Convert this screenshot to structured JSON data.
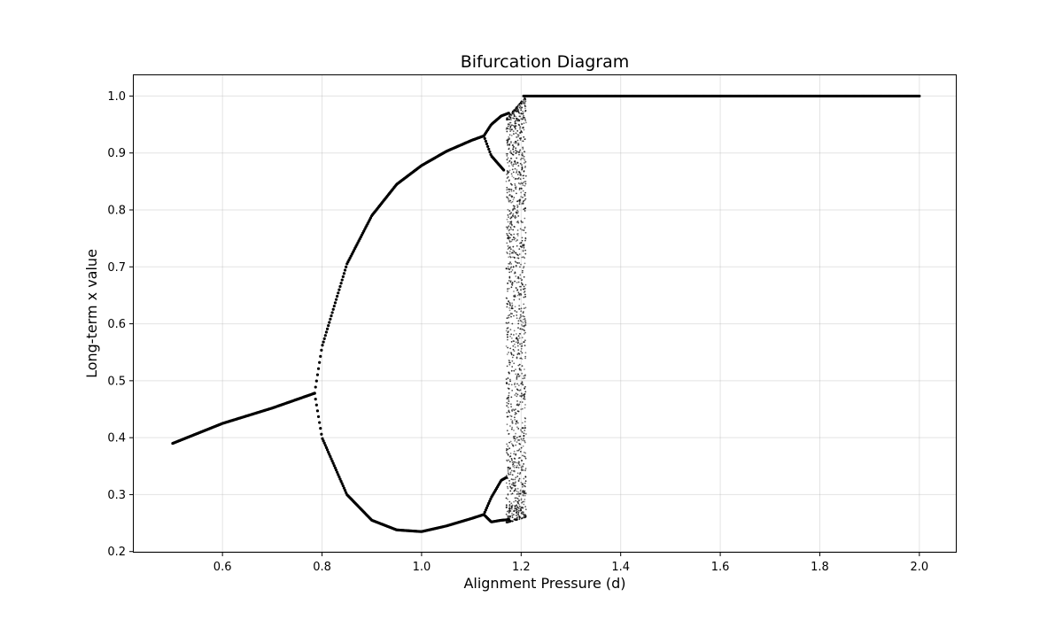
{
  "chart_data": {
    "type": "scatter",
    "title": "Bifurcation Diagram",
    "xlabel": "Alignment Pressure (d)",
    "ylabel": "Long-term x value",
    "xlim": [
      0.42,
      2.075
    ],
    "ylim": [
      0.198,
      1.038
    ],
    "xticks": [
      0.6,
      0.8,
      1.0,
      1.2,
      1.4,
      1.6,
      1.8,
      2.0
    ],
    "xtick_labels": [
      "0.6",
      "0.8",
      "1.0",
      "1.2",
      "1.4",
      "1.6",
      "1.8",
      "2.0"
    ],
    "yticks": [
      0.2,
      0.3,
      0.4,
      0.5,
      0.6,
      0.7,
      0.8,
      0.9,
      1.0
    ],
    "ytick_labels": [
      "0.2",
      "0.3",
      "0.4",
      "0.5",
      "0.6",
      "0.7",
      "0.8",
      "0.9",
      "1.0"
    ],
    "grid": true,
    "marker_color": "#000000",
    "branches": [
      {
        "segment": "fixed-point",
        "x": [
          0.5,
          0.6,
          0.7,
          0.785
        ],
        "y": [
          0.39,
          0.425,
          0.452,
          0.478
        ]
      },
      {
        "segment": "period-2-upper",
        "x": [
          0.785,
          0.8,
          0.85,
          0.9,
          0.95,
          1.0,
          1.05,
          1.1,
          1.125
        ],
        "y": [
          0.478,
          0.56,
          0.705,
          0.79,
          0.845,
          0.878,
          0.903,
          0.922,
          0.93
        ]
      },
      {
        "segment": "period-2-lower",
        "x": [
          0.785,
          0.8,
          0.85,
          0.9,
          0.95,
          1.0,
          1.05,
          1.1,
          1.125
        ],
        "y": [
          0.478,
          0.4,
          0.3,
          0.255,
          0.238,
          0.235,
          0.245,
          0.258,
          0.265
        ]
      },
      {
        "segment": "period-4-upper-a",
        "x": [
          1.125,
          1.14,
          1.16,
          1.175
        ],
        "y": [
          0.93,
          0.95,
          0.965,
          0.97
        ]
      },
      {
        "segment": "period-4-upper-b",
        "x": [
          1.125,
          1.14,
          1.16,
          1.165
        ],
        "y": [
          0.93,
          0.895,
          0.875,
          0.87
        ]
      },
      {
        "segment": "period-4-lower-a",
        "x": [
          1.125,
          1.14,
          1.16,
          1.17
        ],
        "y": [
          0.265,
          0.295,
          0.325,
          0.33
        ]
      },
      {
        "segment": "period-4-lower-b",
        "x": [
          1.125,
          1.14,
          1.16,
          1.175
        ],
        "y": [
          0.265,
          0.252,
          0.255,
          0.256
        ]
      },
      {
        "segment": "saturated",
        "x": [
          1.205,
          1.5,
          2.0
        ],
        "y": [
          1.0,
          1.0,
          1.0
        ]
      }
    ],
    "chaotic_band": {
      "x": [
        1.17,
        1.21
      ],
      "y_upper": [
        0.96,
        1.0
      ],
      "y_lower": [
        0.25,
        0.26
      ]
    }
  }
}
